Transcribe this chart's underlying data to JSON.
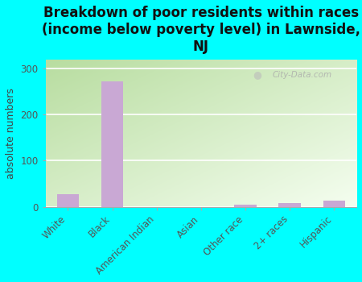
{
  "title": "Breakdown of poor residents within races\n(income below poverty level) in Lawnside,\nNJ",
  "categories": [
    "White",
    "Black",
    "American Indian",
    "Asian",
    "Other race",
    "2+ races",
    "Hispanic"
  ],
  "values": [
    28,
    272,
    0,
    0,
    4,
    8,
    14
  ],
  "bar_color": "#c9a8d4",
  "ylabel": "absolute numbers",
  "ylim": [
    0,
    320
  ],
  "yticks": [
    0,
    100,
    200,
    300
  ],
  "background_color": "#00ffff",
  "watermark": "City-Data.com",
  "title_fontsize": 12,
  "ylabel_fontsize": 9,
  "tick_fontsize": 8.5
}
